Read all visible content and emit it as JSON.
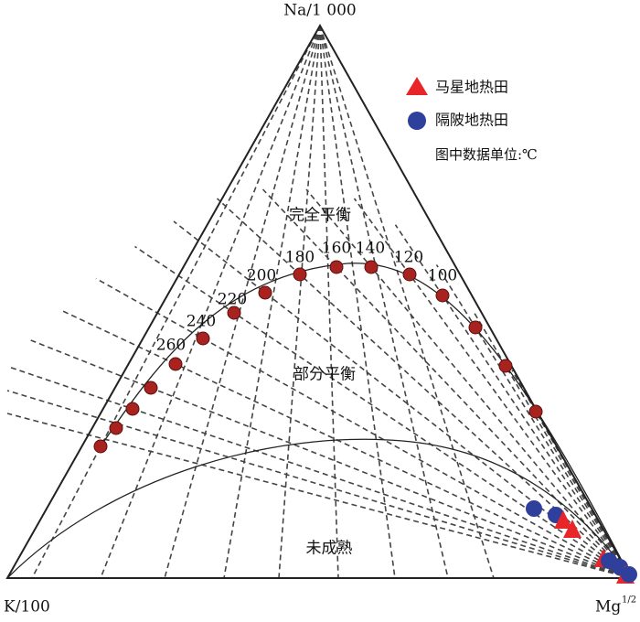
{
  "vertices": {
    "top": "Na/1 000",
    "left": "K/100",
    "right": {
      "base": "Mg",
      "sup": "1/2"
    }
  },
  "legend": {
    "items": [
      "马星地热田",
      "隔陂地热田"
    ],
    "note": "图中数据单位:℃"
  },
  "regions": [
    "完全平衡",
    "部分平衡",
    "未成熟"
  ],
  "isotherms": [
    100,
    120,
    140,
    160,
    180,
    200,
    220,
    240,
    260
  ]
}
